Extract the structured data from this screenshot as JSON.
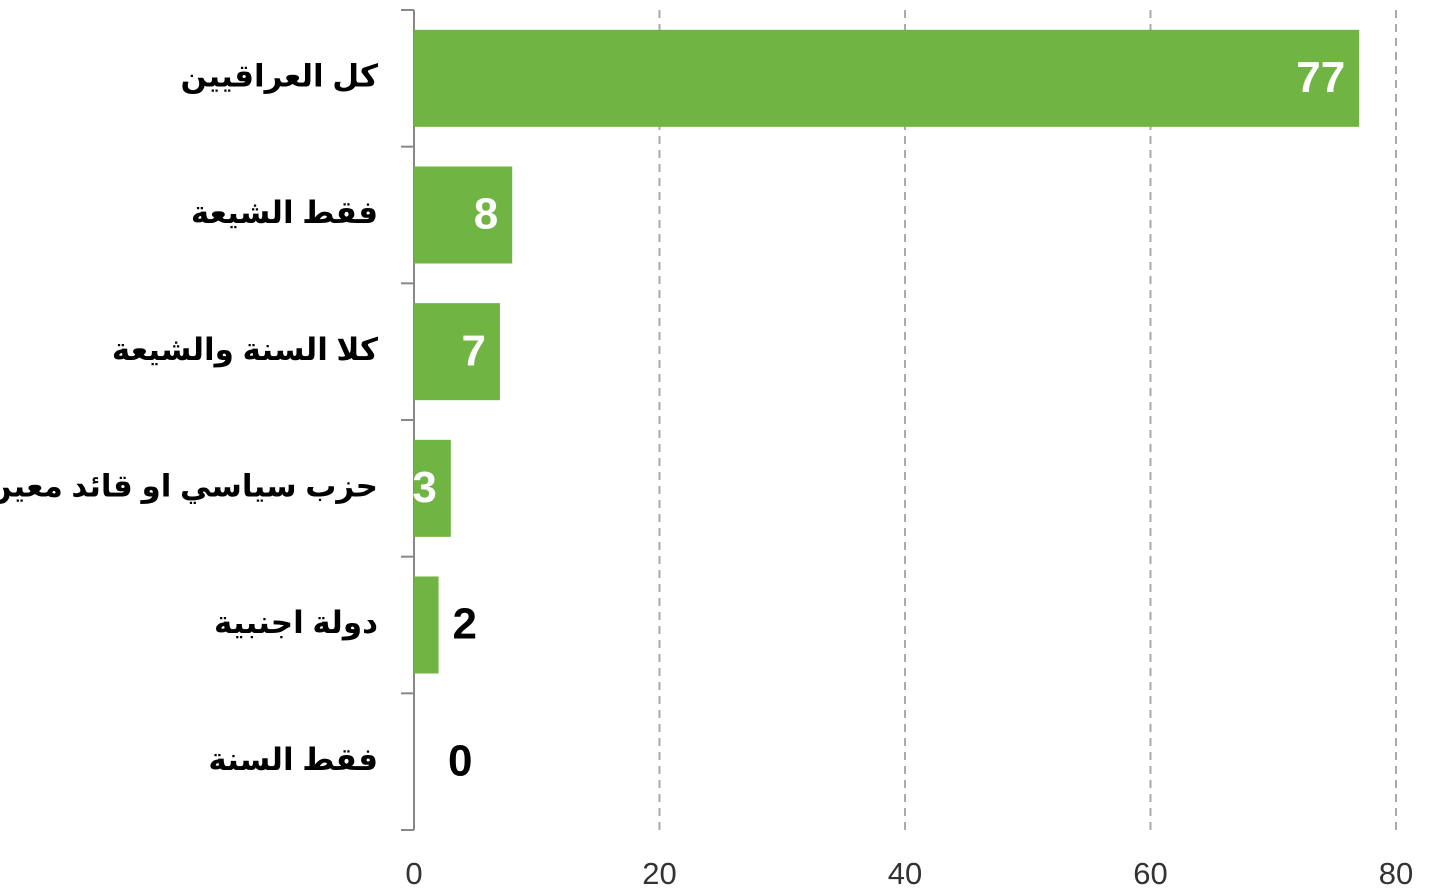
{
  "chart_data": {
    "type": "bar",
    "orientation": "horizontal",
    "categories": [
      "كل العراقيين",
      "فقط الشيعة",
      "كلا السنة والشيعة",
      "حزب سياسي او قائد معين",
      "دولة اجنبية",
      "فقط السنة"
    ],
    "values": [
      77,
      8,
      7,
      3,
      2,
      0
    ],
    "color": "#70b443",
    "xlim": [
      0,
      80
    ],
    "xticks": [
      0,
      20,
      40,
      60,
      80
    ],
    "grid": true
  }
}
